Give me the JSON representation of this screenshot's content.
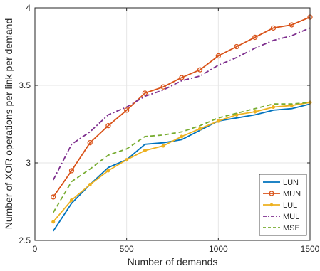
{
  "chart_data": {
    "type": "line",
    "title": "",
    "xlabel": "Number of demands",
    "ylabel": "Number of XOR operations per link per demand",
    "xlim": [
      0,
      1500
    ],
    "ylim": [
      2.5,
      4
    ],
    "xticks": [
      0,
      500,
      1000,
      1500
    ],
    "yticks": [
      2.5,
      3,
      3.5,
      4
    ],
    "xtick_labels": [
      "0",
      "500",
      "1000",
      "1500"
    ],
    "ytick_labels": [
      "2.5",
      "3",
      "3.5",
      "4"
    ],
    "grid": true,
    "legend_position": "bottom-right",
    "x": [
      100,
      200,
      300,
      400,
      500,
      600,
      700,
      800,
      900,
      1000,
      1100,
      1200,
      1300,
      1400,
      1500
    ],
    "series": [
      {
        "name": "LUN",
        "color": "#0072BD",
        "line_style": "solid",
        "marker": "none",
        "values": [
          2.56,
          2.74,
          2.86,
          2.97,
          3.02,
          3.12,
          3.13,
          3.15,
          3.21,
          3.27,
          3.29,
          3.31,
          3.34,
          3.35,
          3.38
        ]
      },
      {
        "name": "MUN",
        "color": "#D95319",
        "line_style": "solid",
        "marker": "circle",
        "values": [
          2.78,
          2.95,
          3.13,
          3.24,
          3.34,
          3.45,
          3.49,
          3.55,
          3.6,
          3.69,
          3.75,
          3.81,
          3.87,
          3.89,
          3.94
        ]
      },
      {
        "name": "LUL",
        "color": "#EDB120",
        "line_style": "solid",
        "marker": "dot",
        "values": [
          2.62,
          2.76,
          2.86,
          2.95,
          3.02,
          3.08,
          3.11,
          3.17,
          3.22,
          3.27,
          3.31,
          3.33,
          3.36,
          3.37,
          3.39
        ]
      },
      {
        "name": "MUL",
        "color": "#7E2F8E",
        "line_style": "dashdot",
        "marker": "none",
        "values": [
          2.89,
          3.12,
          3.2,
          3.31,
          3.36,
          3.43,
          3.47,
          3.53,
          3.56,
          3.63,
          3.68,
          3.74,
          3.79,
          3.82,
          3.87
        ]
      },
      {
        "name": "MSE",
        "color": "#77AC30",
        "line_style": "dashed",
        "marker": "none",
        "values": [
          2.68,
          2.88,
          2.96,
          3.05,
          3.09,
          3.17,
          3.18,
          3.2,
          3.24,
          3.29,
          3.32,
          3.35,
          3.38,
          3.38,
          3.39
        ]
      }
    ]
  }
}
